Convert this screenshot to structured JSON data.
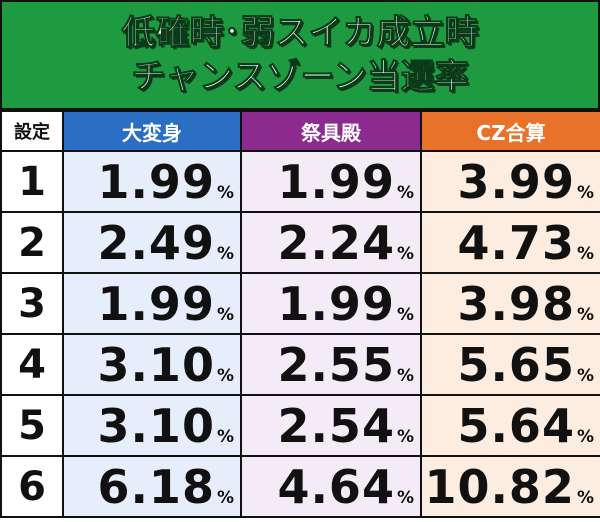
{
  "header": {
    "title_lines": [
      "低確時･弱スイカ成立時",
      "チャンスゾーン当選率"
    ]
  },
  "table": {
    "columns": [
      "設定",
      "大変身",
      "祭具殿",
      "CZ合算"
    ],
    "rows": [
      [
        "1",
        {
          "value": "1.99",
          "unit": "%"
        },
        {
          "value": "1.99",
          "unit": "%"
        },
        {
          "value": "3.99",
          "unit": "%"
        }
      ],
      [
        "2",
        {
          "value": "2.49",
          "unit": "%"
        },
        {
          "value": "2.24",
          "unit": "%"
        },
        {
          "value": "4.73",
          "unit": "%"
        }
      ],
      [
        "3",
        {
          "value": "1.99",
          "unit": "%"
        },
        {
          "value": "1.99",
          "unit": "%"
        },
        {
          "value": "3.98",
          "unit": "%"
        }
      ],
      [
        "4",
        {
          "value": "3.10",
          "unit": "%"
        },
        {
          "value": "2.55",
          "unit": "%"
        },
        {
          "value": "5.65",
          "unit": "%"
        }
      ],
      [
        "5",
        {
          "value": "3.10",
          "unit": "%"
        },
        {
          "value": "2.54",
          "unit": "%"
        },
        {
          "value": "5.64",
          "unit": "%"
        }
      ],
      [
        "6",
        {
          "value": "6.18",
          "unit": "%"
        },
        {
          "value": "4.64",
          "unit": "%"
        },
        {
          "value": "10.82",
          "unit": "%"
        }
      ]
    ]
  }
}
